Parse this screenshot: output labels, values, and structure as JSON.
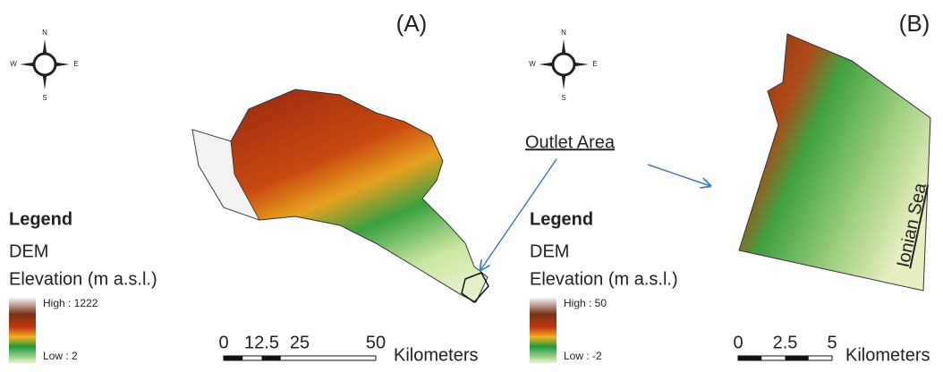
{
  "panels": [
    {
      "label": "(A)",
      "compass": {
        "n": "N",
        "e": "E",
        "s": "S",
        "w": "W"
      },
      "legend": {
        "title": "Legend",
        "layer": "DEM",
        "field": "Elevation (m a.s.l.)",
        "high": "High : 1222",
        "low": "Low : 2"
      },
      "scale": {
        "ticks": [
          0,
          12.5,
          25,
          50
        ],
        "unit": "Kilometers"
      }
    },
    {
      "label": "(B)",
      "compass": {
        "n": "N",
        "e": "E",
        "s": "S",
        "w": "W"
      },
      "legend": {
        "title": "Legend",
        "layer": "DEM",
        "field": "Elevation (m a.s.l.)",
        "high": "High : 50",
        "low": "Low : -2"
      },
      "scale": {
        "ticks": [
          0,
          2.5,
          5
        ],
        "unit": "Kilometers"
      }
    }
  ],
  "annotations": {
    "outlet": "Outlet Area",
    "sea": "Ionian Sea"
  }
}
